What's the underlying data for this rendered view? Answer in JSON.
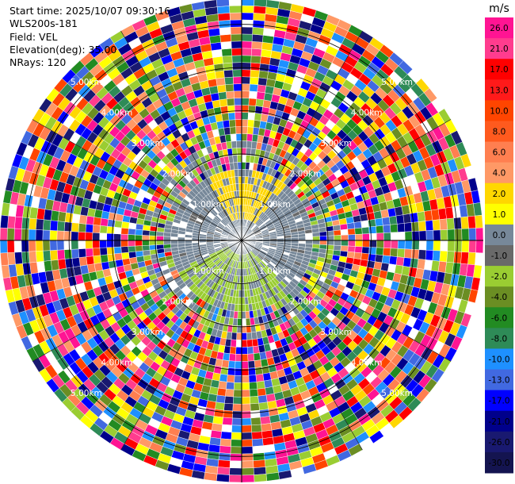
{
  "header": {
    "start_time": "Start time: 2025/10/07 09:30:16",
    "site": "WLS200s-181",
    "field": "Field: VEL",
    "elevation": "Elevation(deg): 35.00",
    "nrays": "NRays: 120"
  },
  "chart_data": {
    "type": "heatmap",
    "projection": "polar-ppi",
    "field": "VEL",
    "elevation_deg": 35.0,
    "n_rays": 120,
    "range_rings_km": [
      1.0,
      2.0,
      3.0,
      4.0,
      5.0
    ],
    "range_labels": [
      "1.00km",
      "2.00km",
      "3.00km",
      "4.00km",
      "5.00km"
    ],
    "max_range_km": 5.6,
    "colorbar": {
      "unit": "m/s",
      "ticks": [
        "26.0",
        "21.0",
        "17.0",
        "13.0",
        "10.0",
        "8.0",
        "6.0",
        "4.0",
        "2.0",
        "1.0",
        "0.0",
        "-1.0",
        "-2.0",
        "-4.0",
        "-6.0",
        "-8.0",
        "-10.0",
        "-13.0",
        "-17.0",
        "-21.0",
        "-26.0",
        "-30.0"
      ],
      "colors": [
        "#ff1493",
        "#ff3c8e",
        "#ff0000",
        "#ff1a1a",
        "#ff4500",
        "#ff5a1e",
        "#ff7f50",
        "#ff9966",
        "#ffd700",
        "#ffff00",
        "#778899",
        "#696969",
        "#9acd32",
        "#6b8e23",
        "#228b22",
        "#2e8b57",
        "#1e90ff",
        "#4169e1",
        "#0000ff",
        "#00008b",
        "#191970",
        "#141450"
      ]
    },
    "inner_region_note": "central area (< ~1.8km) mostly near-zero velocities with yellow (+1 to +4) patch to north and green (-1 to -2) patch to south"
  }
}
